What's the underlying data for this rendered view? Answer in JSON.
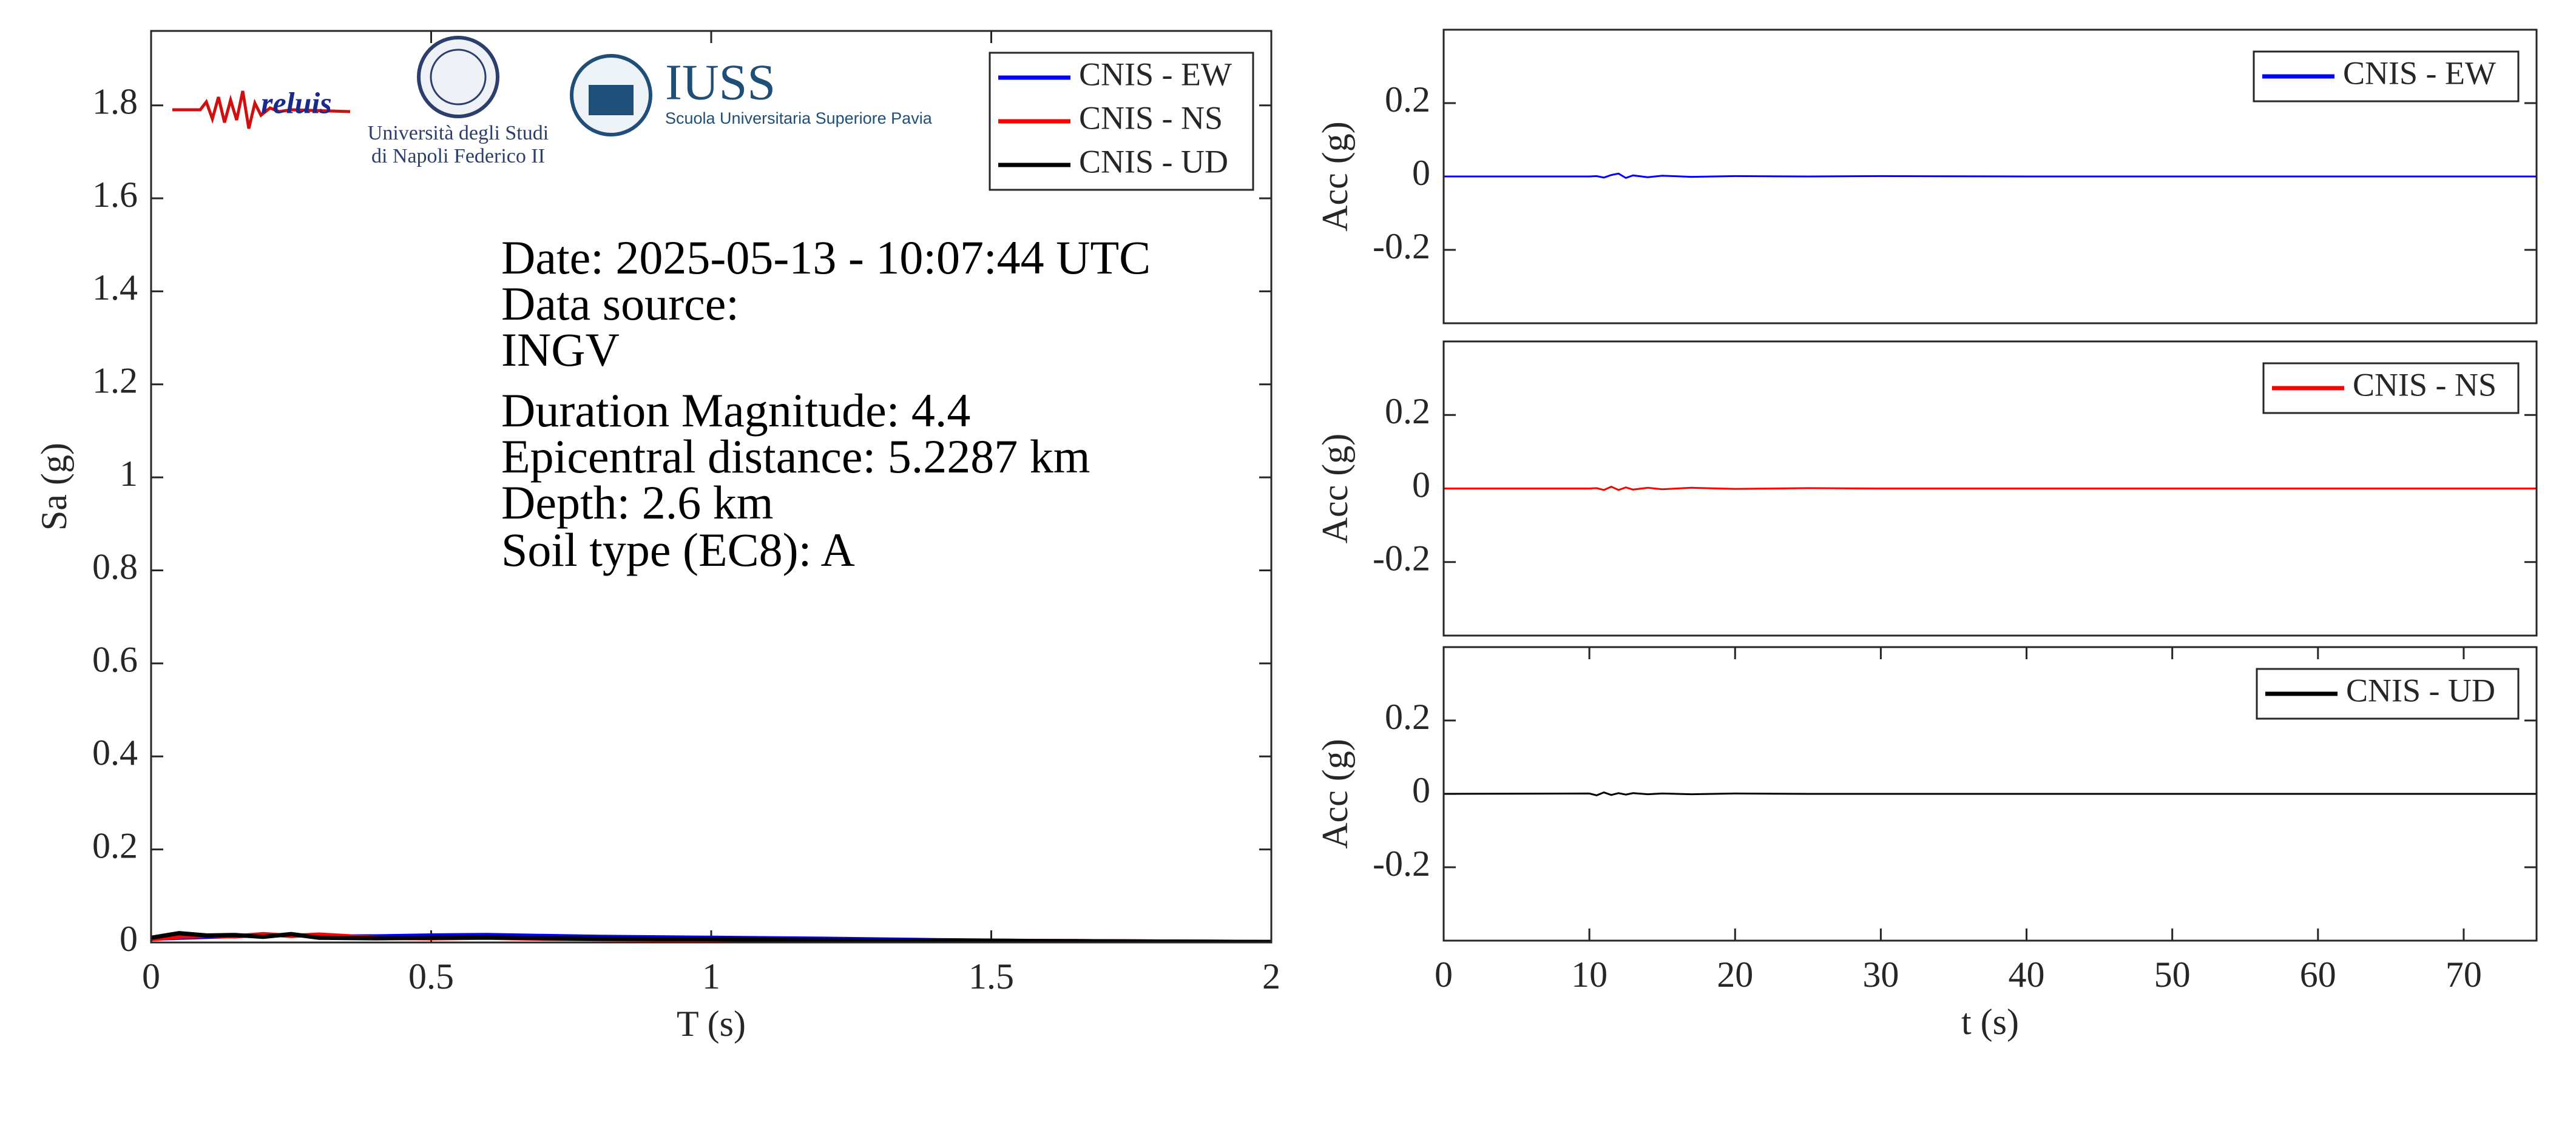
{
  "logos": [
    "reluis",
    "Università degli Studi",
    "di Napoli Federico II",
    "IUSS",
    "Scuola Universitaria Superiore Pavia"
  ],
  "chart_data": [
    {
      "type": "line",
      "xlabel": "T (s)",
      "ylabel": "Sa (g)",
      "xlim": [
        0,
        2
      ],
      "ylim": [
        0,
        1.96
      ],
      "xticks": [
        0,
        0.5,
        1,
        1.5,
        2
      ],
      "yticks": [
        0,
        0.2,
        0.4,
        0.6,
        0.8,
        1,
        1.2,
        1.4,
        1.6,
        1.8
      ],
      "legend": "upper right",
      "annotations": [
        "Date: 2025-05-13 - 10:07:44 UTC",
        "Data source:",
        "INGV",
        "Duration Magnitude: 4.4",
        "Epicentral distance: 5.2287 km",
        "Depth: 2.6 km",
        "Soil type (EC8): A"
      ],
      "x": [
        0,
        0.05,
        0.1,
        0.15,
        0.2,
        0.25,
        0.3,
        0.4,
        0.5,
        0.6,
        0.7,
        0.8,
        1,
        1.2,
        1.4,
        1.6,
        1.8,
        2
      ],
      "series": [
        {
          "name": "CNIS - EW",
          "color": "#0000ff",
          "values": [
            0.008,
            0.01,
            0.012,
            0.014,
            0.015,
            0.016,
            0.013,
            0.013,
            0.015,
            0.016,
            0.014,
            0.012,
            0.01,
            0.008,
            0.005,
            0.003,
            0.002,
            0.001
          ]
        },
        {
          "name": "CNIS - NS",
          "color": "#ff0000",
          "values": [
            0.007,
            0.012,
            0.015,
            0.013,
            0.018,
            0.014,
            0.017,
            0.01,
            0.009,
            0.01,
            0.008,
            0.007,
            0.006,
            0.005,
            0.004,
            0.003,
            0.002,
            0.001
          ]
        },
        {
          "name": "CNIS - UD",
          "color": "#000000",
          "values": [
            0.01,
            0.02,
            0.015,
            0.016,
            0.012,
            0.018,
            0.01,
            0.009,
            0.01,
            0.011,
            0.009,
            0.008,
            0.007,
            0.005,
            0.004,
            0.003,
            0.002,
            0.001
          ]
        }
      ]
    },
    {
      "type": "line",
      "ylabel": "Acc (g)",
      "xlim": [
        0,
        75
      ],
      "ylim": [
        -0.4,
        0.4
      ],
      "yticks": [
        -0.2,
        0,
        0.2
      ],
      "legend": "upper right",
      "x": [
        0,
        10,
        10.5,
        11,
        11.5,
        12,
        12.5,
        13,
        14,
        15,
        17,
        20,
        25,
        30,
        40,
        50,
        60,
        75
      ],
      "series": [
        {
          "name": "CNIS - EW",
          "color": "#0000ff",
          "values": [
            0,
            0,
            0.001,
            -0.003,
            0.004,
            0.008,
            -0.004,
            0.003,
            -0.002,
            0.002,
            -0.001,
            0.001,
            0,
            0.001,
            0,
            0,
            0,
            0
          ]
        }
      ]
    },
    {
      "type": "line",
      "ylabel": "Acc (g)",
      "xlim": [
        0,
        75
      ],
      "ylim": [
        -0.4,
        0.4
      ],
      "yticks": [
        -0.2,
        0,
        0.2
      ],
      "legend": "upper right",
      "x": [
        0,
        10,
        10.5,
        11,
        11.5,
        12,
        12.5,
        13,
        14,
        15,
        17,
        20,
        25,
        30,
        40,
        50,
        60,
        75
      ],
      "series": [
        {
          "name": "CNIS - NS",
          "color": "#ff0000",
          "values": [
            0,
            0,
            0.001,
            -0.004,
            0.005,
            -0.004,
            0.003,
            -0.003,
            0.002,
            -0.002,
            0.002,
            -0.001,
            0.001,
            0,
            0,
            0,
            0,
            0
          ]
        }
      ]
    },
    {
      "type": "line",
      "xlabel": "t (s)",
      "ylabel": "Acc (g)",
      "xlim": [
        0,
        75
      ],
      "ylim": [
        -0.4,
        0.4
      ],
      "xticks": [
        0,
        10,
        20,
        30,
        40,
        50,
        60,
        70
      ],
      "yticks": [
        -0.2,
        0,
        0.2
      ],
      "legend": "upper right",
      "x": [
        0,
        10,
        10.5,
        11,
        11.5,
        12,
        12.5,
        13,
        14,
        15,
        17,
        20,
        25,
        30,
        40,
        50,
        60,
        75
      ],
      "series": [
        {
          "name": "CNIS - UD",
          "color": "#000000",
          "values": [
            0,
            0.001,
            -0.004,
            0.004,
            -0.003,
            0.002,
            -0.002,
            0.002,
            -0.001,
            0.001,
            -0.001,
            0.001,
            0,
            0,
            0,
            0,
            0,
            0
          ]
        }
      ]
    }
  ]
}
